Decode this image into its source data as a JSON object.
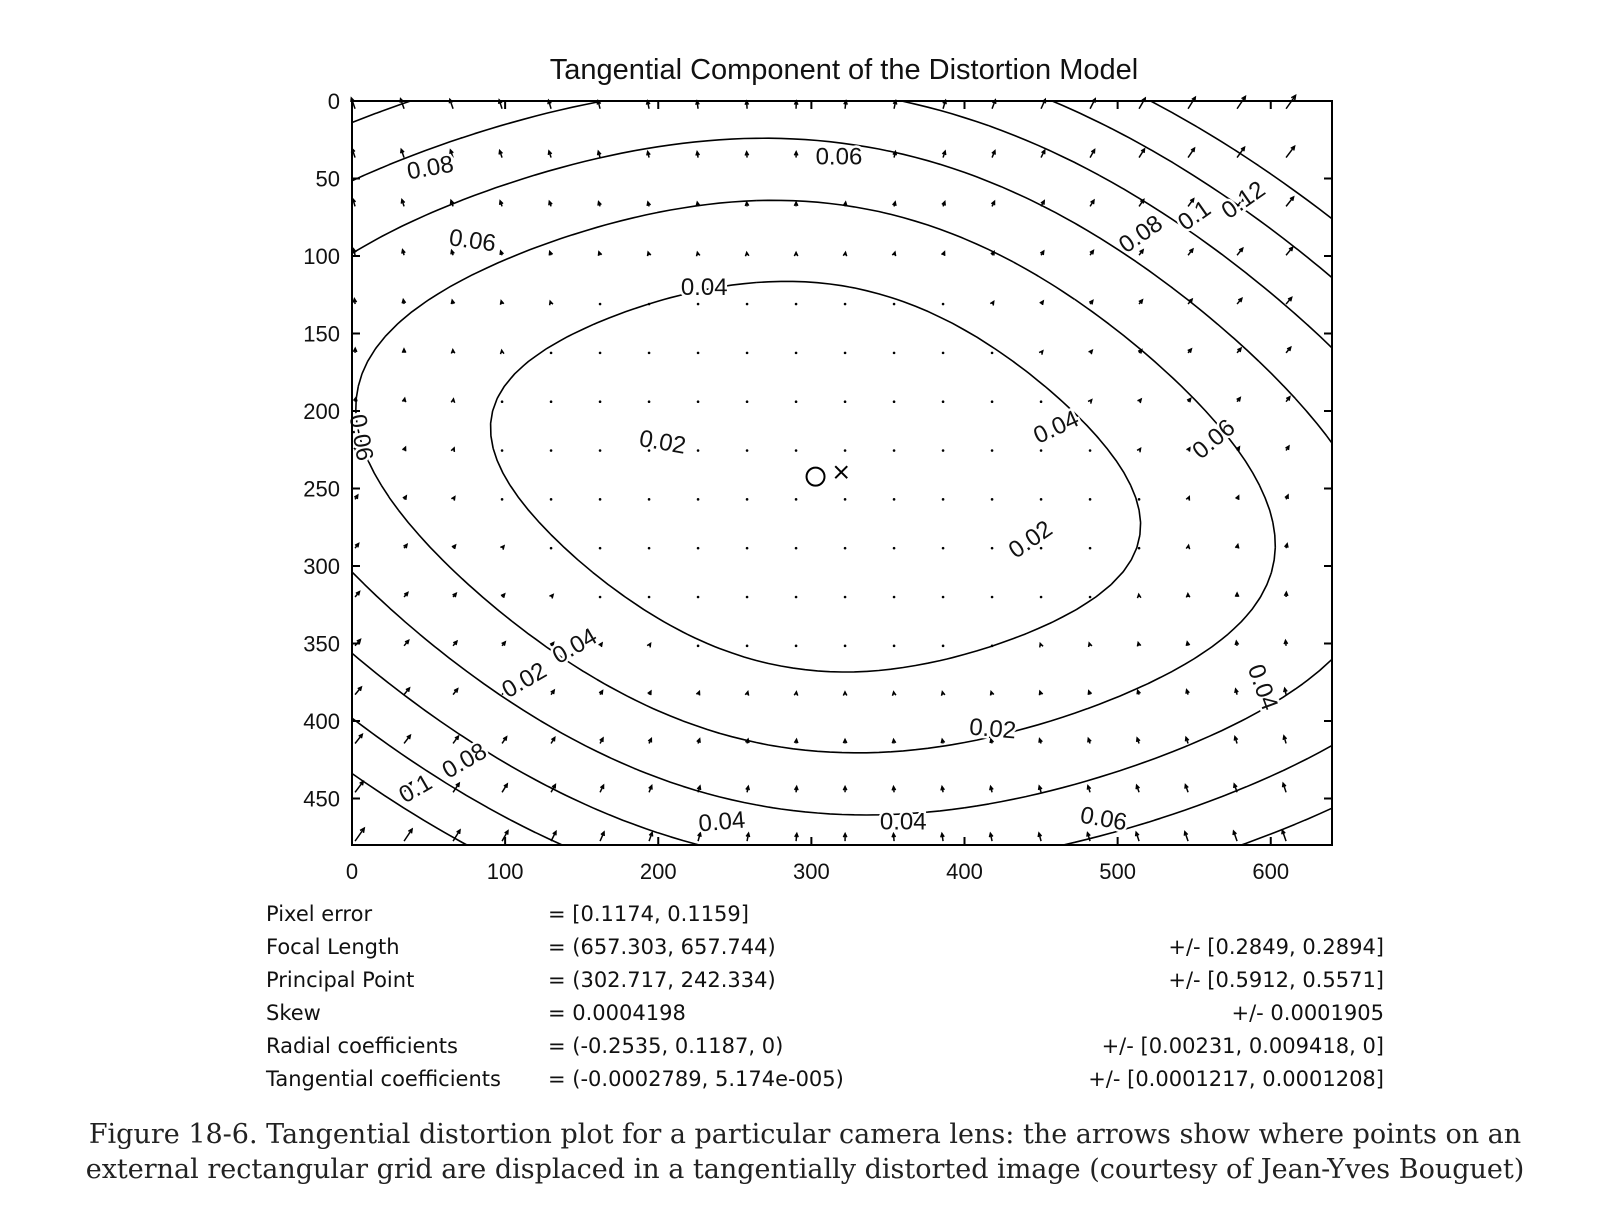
{
  "chart_data": {
    "type": "quiver-contour",
    "title": "Tangential Component of the Distortion Model",
    "x_ticks": [
      0,
      100,
      200,
      300,
      400,
      500,
      600
    ],
    "y_ticks": [
      0,
      50,
      100,
      150,
      200,
      250,
      300,
      350,
      400,
      450
    ],
    "xlim": [
      0,
      640
    ],
    "ylim": [
      480,
      0
    ],
    "y_axis_reversed": true,
    "grid": false,
    "principal_point": [
      302.717,
      242.334
    ],
    "image_center": [
      319.5,
      239.5
    ],
    "markers": {
      "principal_point": "o",
      "image_center": "x"
    },
    "contour_levels": [
      0.02,
      0.04,
      0.06,
      0.08,
      0.1,
      0.12
    ],
    "contour_label_texts": [
      "0.08",
      "0.06",
      "0.04",
      "0.02",
      "0.06",
      "0.08",
      "0.1",
      "0.12",
      "0.04",
      "0.06",
      "0.02",
      "0.04",
      "0.02",
      "0.04",
      "0.02",
      "0.04",
      "0.06",
      "0.04",
      "0.08",
      "0.1",
      "0.06"
    ],
    "tangential_coefficients": [
      -0.0002789,
      5.174e-05
    ],
    "focal_length": [
      657.303,
      657.744
    ]
  },
  "parameters": [
    {
      "name": "Pixel error",
      "value": "= [0.1174, 0.1159]",
      "uncertainty": ""
    },
    {
      "name": "Focal Length",
      "value": "= (657.303, 657.744)",
      "uncertainty": "+/- [0.2849, 0.2894]"
    },
    {
      "name": "Principal Point",
      "value": "= (302.717, 242.334)",
      "uncertainty": "+/- [0.5912, 0.5571]"
    },
    {
      "name": "Skew",
      "value": "= 0.0004198",
      "uncertainty": "+/- 0.0001905"
    },
    {
      "name": "Radial coefficients",
      "value": "= (-0.2535, 0.1187, 0)",
      "uncertainty": "+/- [0.00231, 0.009418, 0]"
    },
    {
      "name": "Tangential coefficients",
      "value": "= (-0.0002789, 5.174e-005)",
      "uncertainty": "+/- [0.0001217, 0.0001208]"
    }
  ],
  "caption": "Figure 18-6. Tangential distortion plot for a particular camera lens: the arrows show where points on an external rectangular grid are displaced in a tangentially distorted image (courtesy of Jean-Yves Bouguet)"
}
